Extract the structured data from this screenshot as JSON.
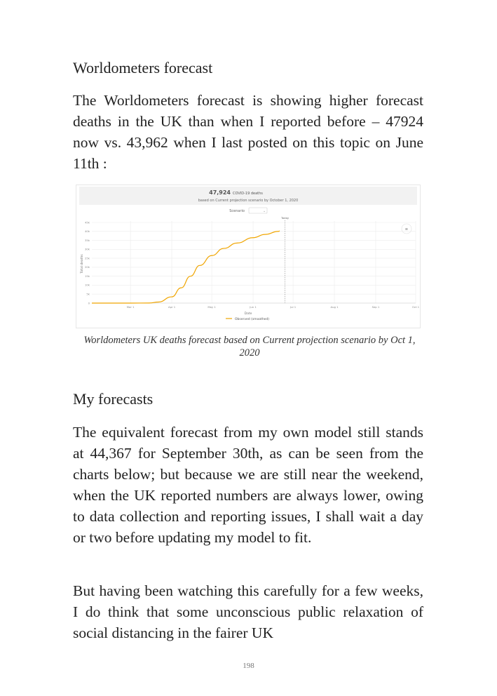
{
  "section1": {
    "heading": "Worldometers forecast",
    "paragraph": "The Worldometers forecast is showing higher forecast deaths in the UK than when I reported before – 47924 now vs. 43,962 when I last posted on this topic on June 11th :"
  },
  "figure": {
    "caption_line1": "Worldometers UK deaths forecast based on Current projection scenario by Oct 1,",
    "caption_line2": "2020"
  },
  "chart_data": {
    "type": "line",
    "headline_value": "47,924",
    "headline_unit": "COVID-19 deaths",
    "subtitle": "based on Current projection scenario by October 1, 2020",
    "scenario_label": "Scenario",
    "today_label": "Today",
    "xlabel": "Date",
    "ylabel": "Total deaths",
    "x_ticks": [
      "Mar 1",
      "Apr 1",
      "May 1",
      "Jun 1",
      "Jul 1",
      "Aug 1",
      "Sep 1",
      "Oct 1"
    ],
    "y_ticks": [
      "0",
      "5k",
      "10k",
      "15k",
      "20k",
      "25k",
      "30k",
      "35k",
      "40k",
      "45k"
    ],
    "xlim": [
      "2020-02-01",
      "2020-10-01"
    ],
    "ylim": [
      0,
      45000
    ],
    "today": "2020-06-25",
    "grid": true,
    "legend_position": "bottom",
    "series": [
      {
        "name": "Observed (smoothed)",
        "color": "#f0a500",
        "points": [
          [
            "2020-02-01",
            0
          ],
          [
            "2020-03-01",
            0
          ],
          [
            "2020-03-15",
            50
          ],
          [
            "2020-03-22",
            600
          ],
          [
            "2020-04-01",
            3500
          ],
          [
            "2020-04-08",
            8500
          ],
          [
            "2020-04-15",
            15000
          ],
          [
            "2020-04-22",
            21000
          ],
          [
            "2020-05-01",
            26500
          ],
          [
            "2020-05-10",
            30500
          ],
          [
            "2020-05-20",
            33500
          ],
          [
            "2020-06-01",
            36500
          ],
          [
            "2020-06-10",
            38300
          ],
          [
            "2020-06-20",
            40000
          ],
          [
            "2020-06-21",
            40200
          ]
        ]
      }
    ]
  },
  "section2": {
    "heading": "My forecasts",
    "paragraph1": "The equivalent forecast from my own model still stands at 44,367 for September 30th, as can be seen from the charts below; but because we are still near the weekend, when the UK reported numbers are always lower, owing to data collection and reporting issues, I shall wait a day or two before updating my model to fit.",
    "paragraph2": "But having been watching this carefully for a few weeks, I do think that some unconscious public relaxation of social distancing in the fairer UK"
  },
  "page_number": "198"
}
